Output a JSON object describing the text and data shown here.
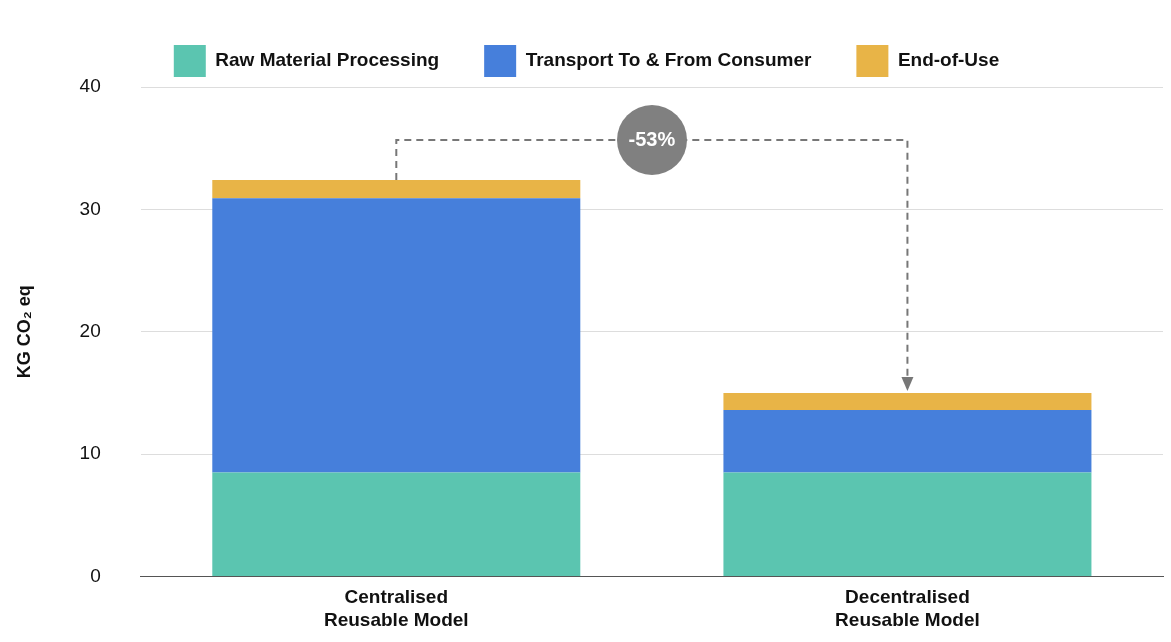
{
  "chart_data": {
    "type": "bar",
    "stacked": true,
    "ylabel": "KG CO₂ eq",
    "categories": [
      "Centralised Reusable Model",
      "Decentralised Reusable Model"
    ],
    "series": [
      {
        "name": "Raw Material Processing",
        "color": "#5bc5b0",
        "values": [
          8.5,
          8.5
        ]
      },
      {
        "name": "Transport To & From Consumer",
        "color": "#467fdb",
        "values": [
          22.4,
          5.1
        ]
      },
      {
        "name": "End-of-Use",
        "color": "#e8b447",
        "values": [
          1.5,
          1.4
        ]
      }
    ],
    "ylim": [
      0,
      40
    ],
    "yticks": [
      0,
      10,
      20,
      30,
      40
    ],
    "grid": "y",
    "legend": "top",
    "annotations": [
      "-53%"
    ]
  }
}
